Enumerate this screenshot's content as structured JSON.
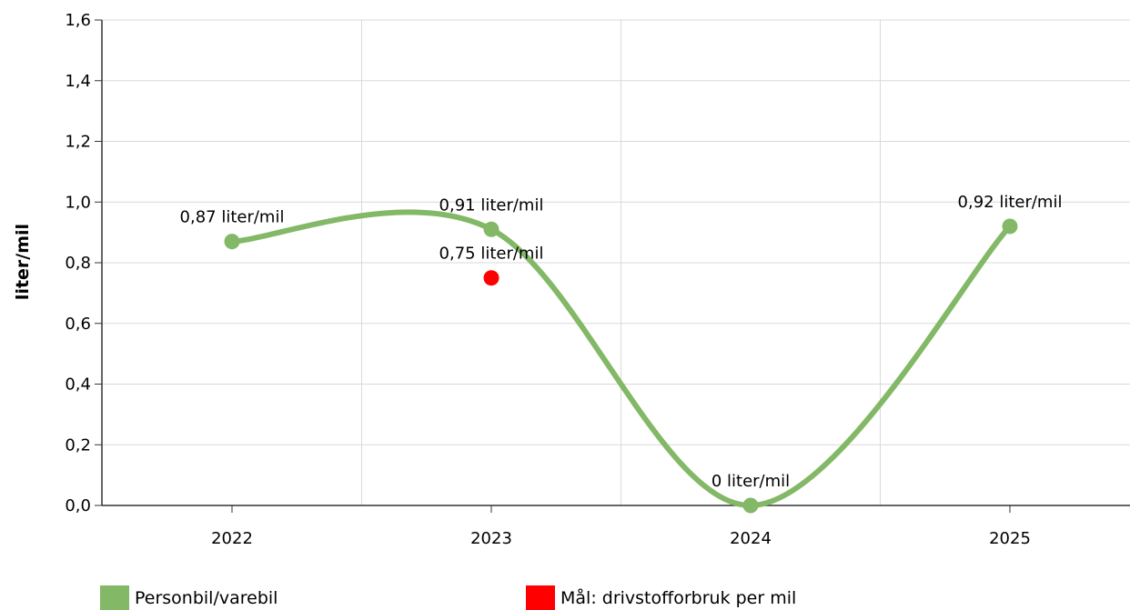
{
  "chart_data": {
    "type": "line",
    "ylabel": "liter/mil",
    "xlabel": "",
    "title": "",
    "ylim": [
      0,
      1.6
    ],
    "yticks": [
      "0,0",
      "0,2",
      "0,4",
      "0,6",
      "0,8",
      "1,0",
      "1,2",
      "1,4",
      "1,6"
    ],
    "categories": [
      "2022",
      "2023",
      "2024",
      "2025"
    ],
    "grid": true,
    "legend_position": "bottom",
    "series": [
      {
        "name": "Personbil/varebil",
        "color": "#82b866",
        "values": [
          0.87,
          0.91,
          0,
          0.92
        ],
        "labels": [
          "0,87 liter/mil",
          "0,91 liter/mil",
          "0 liter/mil",
          "0,92 liter/mil"
        ]
      },
      {
        "name": "Mål: drivstofforbruk per mil",
        "color": "#ff0000",
        "points": [
          {
            "x": "2023",
            "y": 0.75,
            "label": "0,75 liter/mil"
          }
        ]
      }
    ]
  }
}
